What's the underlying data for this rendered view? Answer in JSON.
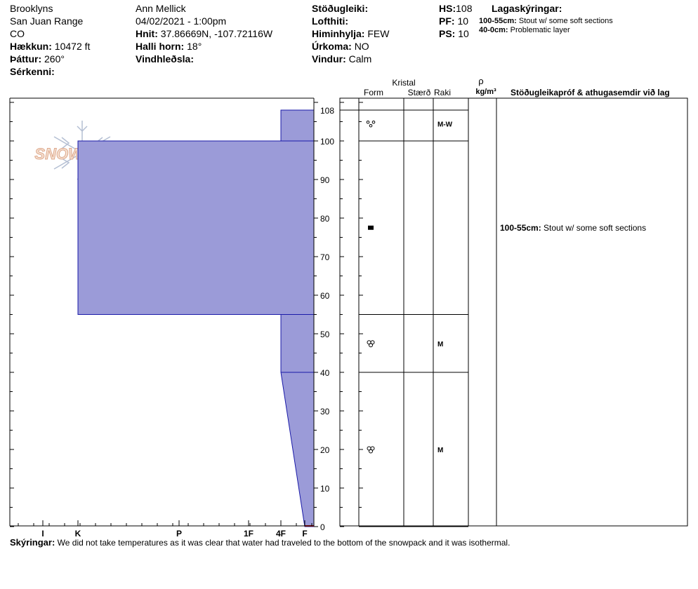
{
  "header": {
    "location": "Brooklyns",
    "range": "San Juan Range",
    "state": "CO",
    "elevation_label": "Hækkun:",
    "elevation": "10472 ft",
    "aspect_label": "Þáttur:",
    "aspect": "260°",
    "features_label": "Sérkenni:",
    "observer": "Ann Mellick",
    "datetime": "04/02/2021 - 1:00pm",
    "coords_label": "Hnit:",
    "coords": "37.86669N, -107.72116W",
    "slope_label": "Halli horn:",
    "slope": "18°",
    "wind_loading_label": "Vindhleðsla:",
    "stability_label": "Stöðugleiki:",
    "air_temp_label": "Lofthiti:",
    "sky_label": "Himinhylja:",
    "sky": "FEW",
    "precip_label": "Úrkoma:",
    "precip": "NO",
    "wind_label": "Vindur:",
    "wind": "Calm",
    "hs_label": "HS:",
    "hs": "108",
    "pf_label": "PF:",
    "pf": "10",
    "ps_label": "PS:",
    "ps": "10",
    "legend_title": "Lagaskýringar:",
    "legend": [
      {
        "range": "100-55cm:",
        "text": "Stout w/ some soft sections"
      },
      {
        "range": "40-0cm:",
        "text": "Problematic layer"
      }
    ]
  },
  "logo_text": "SNOWPILOT",
  "columns": {
    "crystal": "Kristal",
    "form": "Form",
    "size": "Stærð",
    "moisture": "Raki",
    "rho": "ρ",
    "density_unit": "kg/m³",
    "comments": "Stöðugleikapróf & athugasemdir við lag"
  },
  "hardness_ticks": [
    "I",
    "K",
    "P",
    "1F",
    "4F",
    "F"
  ],
  "chart_data": {
    "type": "area",
    "title": "",
    "ylabel": "",
    "xlabel": "",
    "ylim": [
      0,
      110
    ],
    "y_ticks": [
      0,
      10,
      20,
      30,
      40,
      50,
      60,
      70,
      80,
      90,
      100,
      108
    ],
    "hardness_scale": [
      "I",
      "K",
      "P",
      "1F",
      "4F",
      "F"
    ],
    "layers": [
      {
        "top": 108,
        "bottom": 100,
        "hardness_top": "4F",
        "hardness_bottom": "4F",
        "form": "rounds",
        "moisture": "M-W"
      },
      {
        "top": 100,
        "bottom": 55,
        "hardness_top": "K",
        "hardness_bottom": "K",
        "form": "melt-freeze crust",
        "moisture": ""
      },
      {
        "top": 55,
        "bottom": 40,
        "hardness_top": "4F",
        "hardness_bottom": "4F",
        "form": "melt-freeze clusters",
        "moisture": "M"
      },
      {
        "top": 40,
        "bottom": 0,
        "hardness_top": "4F",
        "hardness_bottom": "F",
        "form": "melt-freeze clusters",
        "moisture": "M"
      }
    ],
    "comments": [
      {
        "top": 100,
        "bottom": 55,
        "range": "100-55cm:",
        "text": "Stout w/ some soft sections"
      }
    ],
    "fill_color": "#9b9bd8",
    "edge_color": "#1a1aa8"
  },
  "remarks": {
    "label": "Skýringar:",
    "text": "We did not take temperatures as it was clear that water had traveled to the bottom of the snowpack and it was isothermal."
  }
}
